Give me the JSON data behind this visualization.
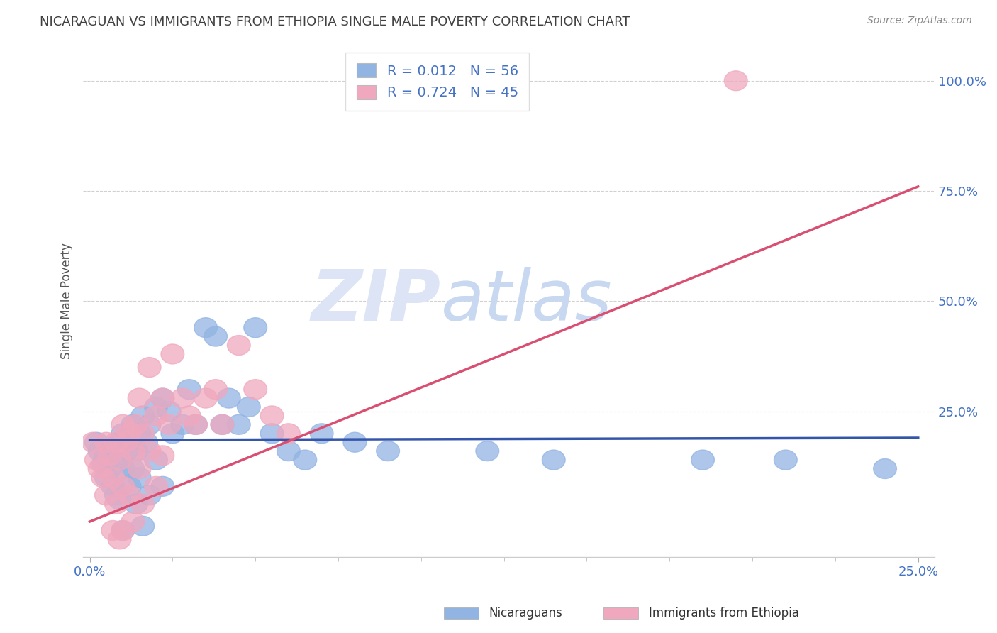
{
  "title": "NICARAGUAN VS IMMIGRANTS FROM ETHIOPIA SINGLE MALE POVERTY CORRELATION CHART",
  "source": "Source: ZipAtlas.com",
  "ylabel_label": "Single Male Poverty",
  "legend_label1": "Nicaraguans",
  "legend_label2": "Immigrants from Ethiopia",
  "r1": "0.012",
  "n1": "56",
  "r2": "0.724",
  "n2": "45",
  "xlim": [
    -0.002,
    0.255
  ],
  "ylim": [
    -0.08,
    1.08
  ],
  "blue_color": "#92b4e3",
  "pink_color": "#f0a8be",
  "blue_line_color": "#3355aa",
  "pink_line_color": "#d94f72",
  "axis_label_color": "#4472c4",
  "title_color": "#404040",
  "source_color": "#888888",
  "watermark_color": "#dce4f5",
  "background_color": "#ffffff",
  "grid_color": "#d0d0d0",
  "spine_color": "#cccccc",
  "ytick_positions": [
    1.0,
    0.75,
    0.5,
    0.25
  ],
  "ytick_labels": [
    "100.0%",
    "75.0%",
    "50.0%",
    "25.0%"
  ],
  "xtick_positions": [
    0.0,
    0.25
  ],
  "xtick_labels": [
    "0.0%",
    "25.0%"
  ],
  "xtick_minor_positions": [
    0.025,
    0.05,
    0.075,
    0.1,
    0.125,
    0.15,
    0.175,
    0.2,
    0.225
  ],
  "blue_line_x": [
    0.0,
    0.25
  ],
  "blue_line_y": [
    0.185,
    0.19
  ],
  "pink_line_x": [
    0.0,
    0.25
  ],
  "pink_line_y": [
    0.0,
    0.76
  ],
  "blue_dots": [
    [
      0.002,
      0.18
    ],
    [
      0.003,
      0.16
    ],
    [
      0.004,
      0.13
    ],
    [
      0.005,
      0.15
    ],
    [
      0.005,
      0.1
    ],
    [
      0.006,
      0.12
    ],
    [
      0.007,
      0.17
    ],
    [
      0.007,
      0.08
    ],
    [
      0.008,
      0.14
    ],
    [
      0.008,
      0.06
    ],
    [
      0.009,
      0.18
    ],
    [
      0.009,
      0.05
    ],
    [
      0.01,
      0.2
    ],
    [
      0.01,
      0.12
    ],
    [
      0.01,
      -0.02
    ],
    [
      0.011,
      0.16
    ],
    [
      0.012,
      0.19
    ],
    [
      0.012,
      0.08
    ],
    [
      0.013,
      0.22
    ],
    [
      0.013,
      0.12
    ],
    [
      0.014,
      0.16
    ],
    [
      0.014,
      0.04
    ],
    [
      0.015,
      0.2
    ],
    [
      0.015,
      0.1
    ],
    [
      0.016,
      0.24
    ],
    [
      0.016,
      -0.01
    ],
    [
      0.017,
      0.18
    ],
    [
      0.018,
      0.22
    ],
    [
      0.018,
      0.06
    ],
    [
      0.02,
      0.26
    ],
    [
      0.02,
      0.14
    ],
    [
      0.022,
      0.28
    ],
    [
      0.022,
      0.08
    ],
    [
      0.024,
      0.25
    ],
    [
      0.025,
      0.2
    ],
    [
      0.028,
      0.22
    ],
    [
      0.03,
      0.3
    ],
    [
      0.032,
      0.22
    ],
    [
      0.035,
      0.44
    ],
    [
      0.038,
      0.42
    ],
    [
      0.04,
      0.22
    ],
    [
      0.042,
      0.28
    ],
    [
      0.045,
      0.22
    ],
    [
      0.048,
      0.26
    ],
    [
      0.05,
      0.44
    ],
    [
      0.055,
      0.2
    ],
    [
      0.06,
      0.16
    ],
    [
      0.065,
      0.14
    ],
    [
      0.07,
      0.2
    ],
    [
      0.08,
      0.18
    ],
    [
      0.09,
      0.16
    ],
    [
      0.12,
      0.16
    ],
    [
      0.14,
      0.14
    ],
    [
      0.185,
      0.14
    ],
    [
      0.21,
      0.14
    ],
    [
      0.24,
      0.12
    ]
  ],
  "pink_dots": [
    [
      0.001,
      0.18
    ],
    [
      0.002,
      0.14
    ],
    [
      0.003,
      0.12
    ],
    [
      0.004,
      0.1
    ],
    [
      0.005,
      0.18
    ],
    [
      0.005,
      0.06
    ],
    [
      0.006,
      0.15
    ],
    [
      0.007,
      0.1
    ],
    [
      0.007,
      -0.02
    ],
    [
      0.008,
      0.18
    ],
    [
      0.008,
      0.04
    ],
    [
      0.009,
      0.14
    ],
    [
      0.009,
      -0.04
    ],
    [
      0.01,
      0.22
    ],
    [
      0.01,
      0.08
    ],
    [
      0.01,
      -0.02
    ],
    [
      0.011,
      0.18
    ],
    [
      0.012,
      0.2
    ],
    [
      0.012,
      0.06
    ],
    [
      0.013,
      0.16
    ],
    [
      0.013,
      0.0
    ],
    [
      0.014,
      0.22
    ],
    [
      0.015,
      0.28
    ],
    [
      0.015,
      0.12
    ],
    [
      0.016,
      0.2
    ],
    [
      0.016,
      0.04
    ],
    [
      0.018,
      0.35
    ],
    [
      0.018,
      0.16
    ],
    [
      0.02,
      0.24
    ],
    [
      0.02,
      0.08
    ],
    [
      0.022,
      0.28
    ],
    [
      0.022,
      0.15
    ],
    [
      0.024,
      0.22
    ],
    [
      0.025,
      0.38
    ],
    [
      0.028,
      0.28
    ],
    [
      0.03,
      0.24
    ],
    [
      0.032,
      0.22
    ],
    [
      0.035,
      0.28
    ],
    [
      0.038,
      0.3
    ],
    [
      0.04,
      0.22
    ],
    [
      0.045,
      0.4
    ],
    [
      0.05,
      0.3
    ],
    [
      0.055,
      0.24
    ],
    [
      0.06,
      0.2
    ],
    [
      0.195,
      1.0
    ]
  ]
}
